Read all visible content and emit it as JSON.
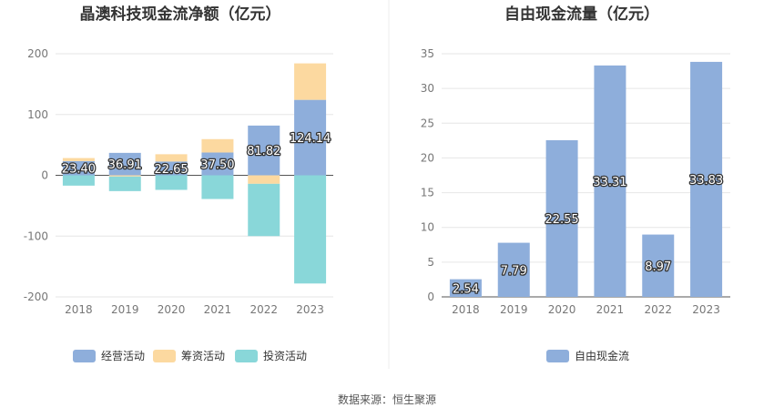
{
  "chart_data": [
    {
      "type": "bar",
      "stacked": true,
      "title": "晶澳科技现金流净额（亿元）",
      "categories": [
        "2018",
        "2019",
        "2020",
        "2021",
        "2022",
        "2023"
      ],
      "ylim": [
        -200,
        200
      ],
      "yticks": [
        200,
        100,
        0,
        -100,
        -200
      ],
      "grid": true,
      "legend_position": "bottom",
      "series": [
        {
          "name": "经营活动",
          "color": "#8eaedb",
          "values": [
            23.4,
            36.91,
            22.65,
            37.5,
            81.82,
            124.14
          ]
        },
        {
          "name": "筹资活动",
          "color": "#fcd9a0",
          "values": [
            5,
            -2,
            12,
            22,
            -14,
            60
          ]
        },
        {
          "name": "投资活动",
          "color": "#89d7d9",
          "values": [
            -17,
            -24,
            -24,
            -39,
            -86,
            -178
          ]
        }
      ],
      "data_labels": [
        "23.40",
        "36.91",
        "22.65",
        "37.50",
        "81.82",
        "124.14"
      ]
    },
    {
      "type": "bar",
      "title": "自由现金流量（亿元）",
      "categories": [
        "2018",
        "2019",
        "2020",
        "2021",
        "2022",
        "2023"
      ],
      "ylim": [
        0,
        35
      ],
      "yticks": [
        0,
        5,
        10,
        15,
        20,
        25,
        30,
        35
      ],
      "grid": true,
      "legend_position": "bottom",
      "series": [
        {
          "name": "自由现金流",
          "color": "#8eaedb",
          "values": [
            2.54,
            7.79,
            22.55,
            33.31,
            8.97,
            33.83
          ]
        }
      ],
      "data_labels": [
        "2.54",
        "7.79",
        "22.55",
        "33.31",
        "8.97",
        "33.83"
      ]
    }
  ],
  "footer": {
    "source": "数据来源：恒生聚源"
  },
  "colors": {
    "axis_label": "#777777",
    "grid": "#e6e6e6",
    "divider": "#eeeeee",
    "data_label_stroke": "#333333"
  }
}
